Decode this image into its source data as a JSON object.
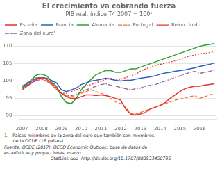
{
  "chart_data": {
    "type": "line",
    "title": "El crecimiento va cobrando fuerza",
    "subtitle": "PIB real, índice T4 2007 = 100¹",
    "annotations": [
      "1. Países miembros de la zona del euro que también son miembros\n  de la OCDE (16 países).",
      "Fuente: OCDE (2017), OECD Economic Outlook: base de datos de\nestadísticas y proyecciones, marzo.",
      "StatLink ⌂⌂⌂  http://dx.doi.org/10.1787/888933458795"
    ],
    "x": [
      2007.0,
      2007.25,
      2007.5,
      2007.75,
      2008.0,
      2008.25,
      2008.5,
      2008.75,
      2009.0,
      2009.25,
      2009.5,
      2009.75,
      2010.0,
      2010.25,
      2010.5,
      2010.75,
      2011.0,
      2011.25,
      2011.5,
      2011.75,
      2012.0,
      2012.25,
      2012.5,
      2012.75,
      2013.0,
      2013.25,
      2013.5,
      2013.75,
      2014.0,
      2014.25,
      2014.5,
      2014.75,
      2015.0,
      2015.25,
      2015.5,
      2015.75,
      2016.0,
      2016.25,
      2016.5,
      2016.75
    ],
    "series": [
      {
        "name": "España",
        "color": "#e83030",
        "line_style": "solid",
        "values": [
          97.5,
          98.5,
          99.5,
          100.5,
          101.0,
          100.5,
          99.5,
          98.0,
          96.5,
          95.5,
          95.0,
          95.0,
          95.5,
          96.0,
          96.0,
          95.8,
          96.0,
          95.8,
          95.5,
          95.0,
          94.5,
          92.0,
          90.5,
          90.2,
          90.5,
          91.0,
          92.0,
          92.5,
          93.0,
          93.8,
          95.0,
          96.0,
          97.0,
          97.8,
          98.2,
          98.5,
          98.5,
          98.8,
          99.0,
          99.2
        ]
      },
      {
        "name": "Francia",
        "color": "#3060c0",
        "line_style": "solid",
        "values": [
          98.5,
          99.2,
          100.0,
          100.8,
          101.0,
          100.8,
          100.2,
          99.5,
          97.5,
          97.0,
          97.5,
          98.0,
          99.0,
          99.5,
          100.0,
          100.2,
          100.5,
          100.8,
          100.5,
          100.2,
          100.0,
          100.2,
          100.2,
          100.5,
          100.8,
          101.0,
          101.2,
          101.5,
          102.0,
          102.3,
          102.5,
          102.8,
          103.0,
          103.2,
          103.5,
          103.8,
          104.2,
          104.5,
          104.8,
          105.2
        ]
      },
      {
        "name": "Alemania",
        "color": "#30a030",
        "line_style": "solid",
        "values": [
          98.0,
          99.0,
          100.5,
          101.8,
          102.0,
          101.5,
          100.0,
          98.5,
          95.5,
          93.8,
          93.5,
          95.0,
          97.5,
          99.0,
          100.5,
          101.8,
          102.5,
          103.0,
          103.0,
          102.5,
          102.5,
          103.0,
          103.5,
          103.5,
          104.0,
          104.5,
          105.0,
          105.5,
          106.0,
          106.5,
          107.0,
          107.5,
          108.0,
          108.5,
          109.0,
          109.5,
          110.0,
          110.3,
          110.5,
          110.8
        ]
      },
      {
        "name": "Portugal",
        "color": "#e87830",
        "line_style": "dashed",
        "values": [
          98.5,
          99.5,
          100.5,
          101.0,
          100.5,
          100.0,
          99.0,
          97.5,
          96.5,
          95.8,
          95.5,
          96.0,
          96.5,
          97.0,
          97.5,
          97.0,
          96.5,
          96.0,
          95.0,
          94.0,
          93.5,
          92.5,
          90.8,
          90.5,
          91.0,
          91.5,
          92.0,
          92.5,
          93.0,
          93.5,
          94.0,
          94.5,
          94.8,
          95.2,
          95.5,
          95.8,
          95.0,
          95.5,
          96.0,
          96.5
        ]
      },
      {
        "name": "Reino Unido",
        "color": "#e83030",
        "line_style": "dotted",
        "values": [
          98.0,
          99.0,
          100.0,
          101.0,
          101.0,
          100.0,
          99.0,
          97.5,
          96.5,
          96.5,
          97.0,
          97.5,
          98.0,
          98.5,
          99.0,
          99.5,
          100.0,
          100.5,
          100.8,
          100.5,
          100.5,
          101.0,
          101.5,
          102.0,
          102.8,
          103.5,
          104.0,
          104.5,
          104.8,
          105.2,
          105.5,
          105.8,
          106.2,
          106.8,
          107.2,
          107.5,
          107.8,
          108.0,
          108.2,
          108.5
        ]
      },
      {
        "name": "Zona del euro¹",
        "color": "#9060a0",
        "line_style": "dashdot",
        "values": [
          98.0,
          98.8,
          99.5,
          100.2,
          100.5,
          100.0,
          99.2,
          98.0,
          96.5,
          95.8,
          95.8,
          96.2,
          96.8,
          97.5,
          98.0,
          98.5,
          99.0,
          99.2,
          98.8,
          98.5,
          98.2,
          97.8,
          97.5,
          97.8,
          98.0,
          98.5,
          98.8,
          99.0,
          99.5,
          100.0,
          100.5,
          101.0,
          101.5,
          102.0,
          102.5,
          102.8,
          102.2,
          102.5,
          102.8,
          103.2
        ]
      }
    ],
    "xlim": [
      2006.85,
      2016.85
    ],
    "xticks": [
      2007,
      2008,
      2009,
      2010,
      2011,
      2012,
      2013,
      2014,
      2015,
      2016
    ],
    "ylim": [
      89,
      111
    ],
    "yticks": [
      90,
      95,
      100,
      105,
      110
    ],
    "grid": "y",
    "legend": "top"
  }
}
